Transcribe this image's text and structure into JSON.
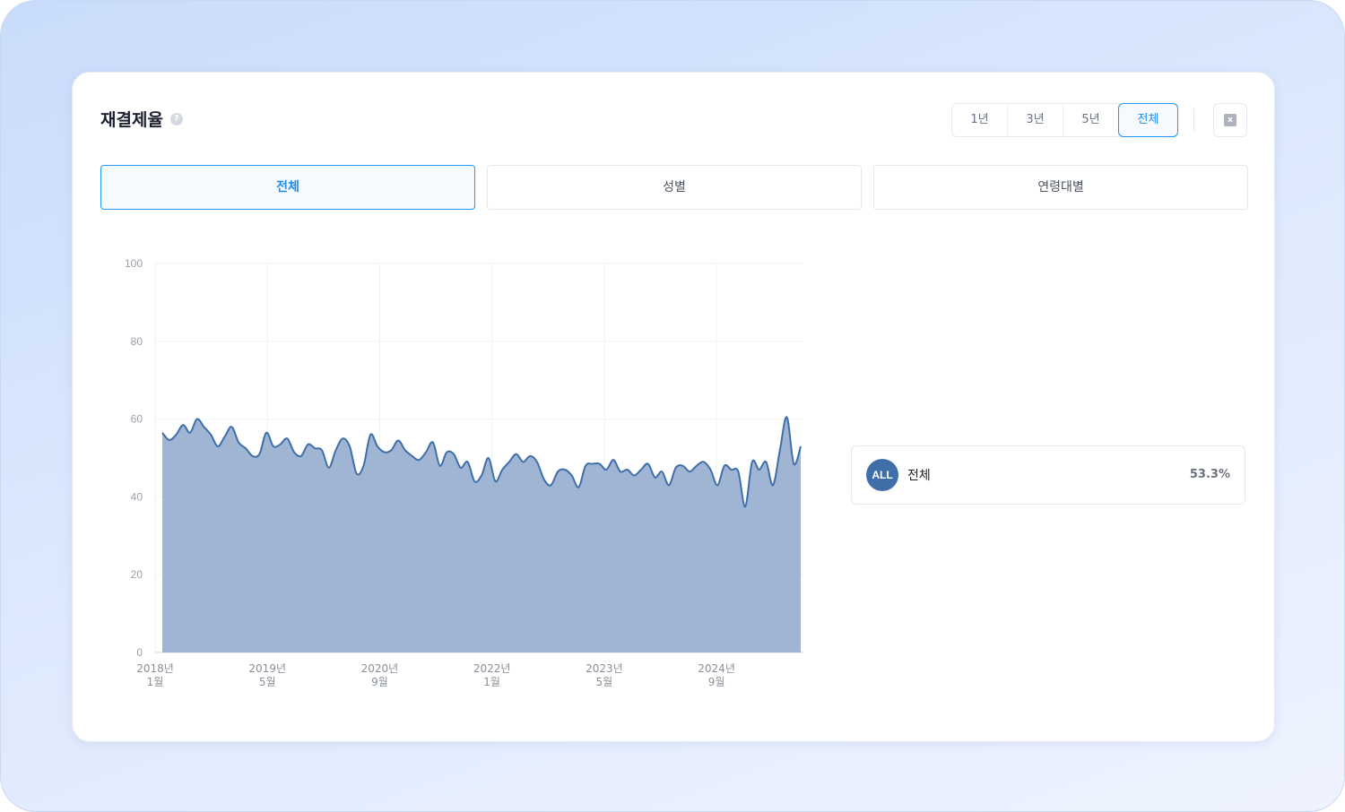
{
  "header": {
    "title": "재결제율",
    "help_icon": "question-circle-icon"
  },
  "range_buttons": [
    {
      "label": "1년",
      "active": false
    },
    {
      "label": "3년",
      "active": false
    },
    {
      "label": "5년",
      "active": false
    },
    {
      "label": "전체",
      "active": true
    }
  ],
  "export_icon": "excel-download-icon",
  "tabs": [
    {
      "label": "전체",
      "active": true
    },
    {
      "label": "성별",
      "active": false
    },
    {
      "label": "연령대별",
      "active": false
    }
  ],
  "legend": {
    "badge": "ALL",
    "name": "전체",
    "value": "53.3%"
  },
  "chart_data": {
    "type": "area",
    "color": "#3f6ea8",
    "fill": "#a0b5d3",
    "ylim": [
      0,
      100
    ],
    "yticks": [
      0,
      20,
      40,
      60,
      80,
      100
    ],
    "grid": true,
    "xticks": [
      {
        "index": 0,
        "year": "2018년",
        "month": "1월"
      },
      {
        "index": 16,
        "year": "2019년",
        "month": "5월"
      },
      {
        "index": 32,
        "year": "2020년",
        "month": "9월"
      },
      {
        "index": 48,
        "year": "2022년",
        "month": "1월"
      },
      {
        "index": 64,
        "year": "2023년",
        "month": "5월"
      },
      {
        "index": 80,
        "year": "2024년",
        "month": "9월"
      }
    ],
    "values": [
      56.5,
      54.6,
      56,
      58.5,
      56.5,
      60,
      58,
      56,
      53,
      55.5,
      58,
      54,
      52.5,
      50.5,
      51,
      56.5,
      53,
      53.5,
      55,
      51.5,
      50.5,
      53.5,
      52.5,
      52,
      47.5,
      52,
      55,
      53,
      46,
      48,
      56,
      53,
      51.5,
      52,
      54.5,
      52,
      50.5,
      49.5,
      51.5,
      54,
      48,
      51.5,
      51,
      47.5,
      49,
      44,
      45.5,
      50,
      44,
      47,
      49,
      51,
      49,
      50.5,
      49,
      44.5,
      43,
      46.5,
      47,
      45.5,
      42.5,
      48,
      48.5,
      48.5,
      47,
      49.5,
      46.5,
      47,
      45.5,
      47,
      48.5,
      45,
      46.5,
      43,
      47.5,
      48,
      46.5,
      48,
      49,
      47,
      43,
      48,
      47,
      46.5,
      37.5,
      49,
      47,
      49,
      43,
      52,
      60.5,
      48.5,
      53
    ]
  }
}
